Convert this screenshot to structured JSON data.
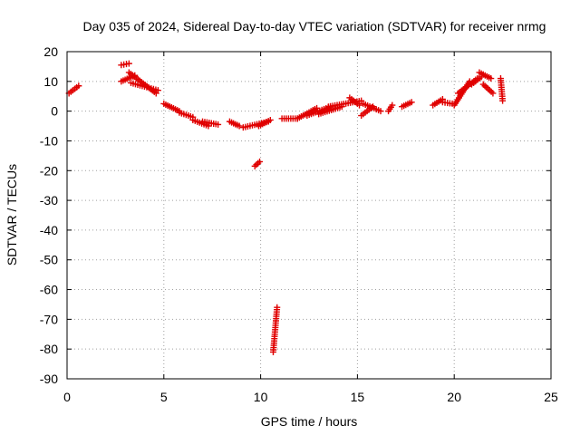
{
  "chart_data": {
    "type": "scatter",
    "title": "Day 035 of 2024, Sidereal Day-to-day VTEC variation (SDTVAR) for receiver nrmg",
    "xlabel": "GPS time / hours",
    "ylabel": "SDTVAR / TECUs",
    "xlim": [
      0,
      25
    ],
    "ylim": [
      -90,
      20
    ],
    "xticks": [
      0,
      5,
      10,
      15,
      20,
      25
    ],
    "yticks": [
      20,
      10,
      0,
      -10,
      -20,
      -30,
      -40,
      -50,
      -60,
      -70,
      -80,
      -90
    ],
    "grid": true,
    "marker": "+",
    "color": "#e00000",
    "segments": [
      {
        "x": [
          0.1,
          0.6
        ],
        "y": [
          6,
          8.5
        ]
      },
      {
        "x": [
          2.8,
          3.2
        ],
        "y": [
          15.5,
          16
        ]
      },
      {
        "x": [
          2.8,
          3.5
        ],
        "y": [
          10,
          12
        ]
      },
      {
        "x": [
          3.2,
          4.6
        ],
        "y": [
          13,
          6
        ]
      },
      {
        "x": [
          3.3,
          4.7
        ],
        "y": [
          9.5,
          7
        ]
      },
      {
        "x": [
          5.0,
          5.8
        ],
        "y": [
          2.5,
          0
        ]
      },
      {
        "x": [
          5.8,
          6.5
        ],
        "y": [
          -0.5,
          -2
        ]
      },
      {
        "x": [
          6.5,
          7.3
        ],
        "y": [
          -3,
          -5
        ]
      },
      {
        "x": [
          7.0,
          7.8
        ],
        "y": [
          -3.5,
          -4.5
        ]
      },
      {
        "x": [
          8.4,
          8.9
        ],
        "y": [
          -3.5,
          -5
        ]
      },
      {
        "x": [
          9.1,
          10.4
        ],
        "y": [
          -5.5,
          -3.5
        ]
      },
      {
        "x": [
          9.9,
          10.5
        ],
        "y": [
          -5,
          -3
        ]
      },
      {
        "x": [
          9.7,
          9.95
        ],
        "y": [
          -18.5,
          -17
        ]
      },
      {
        "x": [
          10.65,
          10.85
        ],
        "y": [
          -81,
          -66
        ]
      },
      {
        "x": [
          11.1,
          11.9
        ],
        "y": [
          -2.5,
          -2.5
        ]
      },
      {
        "x": [
          11.9,
          12.9
        ],
        "y": [
          -2.5,
          1
        ]
      },
      {
        "x": [
          12.4,
          13.6
        ],
        "y": [
          -1.5,
          1.5
        ]
      },
      {
        "x": [
          13.0,
          14.2
        ],
        "y": [
          -1,
          1.5
        ]
      },
      {
        "x": [
          13.5,
          15.2
        ],
        "y": [
          1.5,
          3.5
        ]
      },
      {
        "x": [
          14.6,
          15.1
        ],
        "y": [
          4.5,
          2
        ]
      },
      {
        "x": [
          15.2,
          15.8
        ],
        "y": [
          -1.5,
          1.5
        ]
      },
      {
        "x": [
          15.3,
          16.2
        ],
        "y": [
          2.5,
          0
        ]
      },
      {
        "x": [
          16.6,
          16.8
        ],
        "y": [
          0,
          2
        ]
      },
      {
        "x": [
          17.3,
          17.8
        ],
        "y": [
          1.5,
          3
        ]
      },
      {
        "x": [
          18.9,
          19.4
        ],
        "y": [
          2,
          4
        ]
      },
      {
        "x": [
          19.4,
          19.9
        ],
        "y": [
          3,
          2.5
        ]
      },
      {
        "x": [
          20.0,
          20.8
        ],
        "y": [
          2,
          10
        ]
      },
      {
        "x": [
          20.2,
          21.2
        ],
        "y": [
          6,
          11
        ]
      },
      {
        "x": [
          20.9,
          21.4
        ],
        "y": [
          9,
          11.5
        ]
      },
      {
        "x": [
          21.3,
          21.9
        ],
        "y": [
          13,
          11
        ]
      },
      {
        "x": [
          21.5,
          22.0
        ],
        "y": [
          9,
          6
        ]
      },
      {
        "x": [
          22.4,
          22.5
        ],
        "y": [
          11,
          3.5
        ]
      }
    ]
  }
}
